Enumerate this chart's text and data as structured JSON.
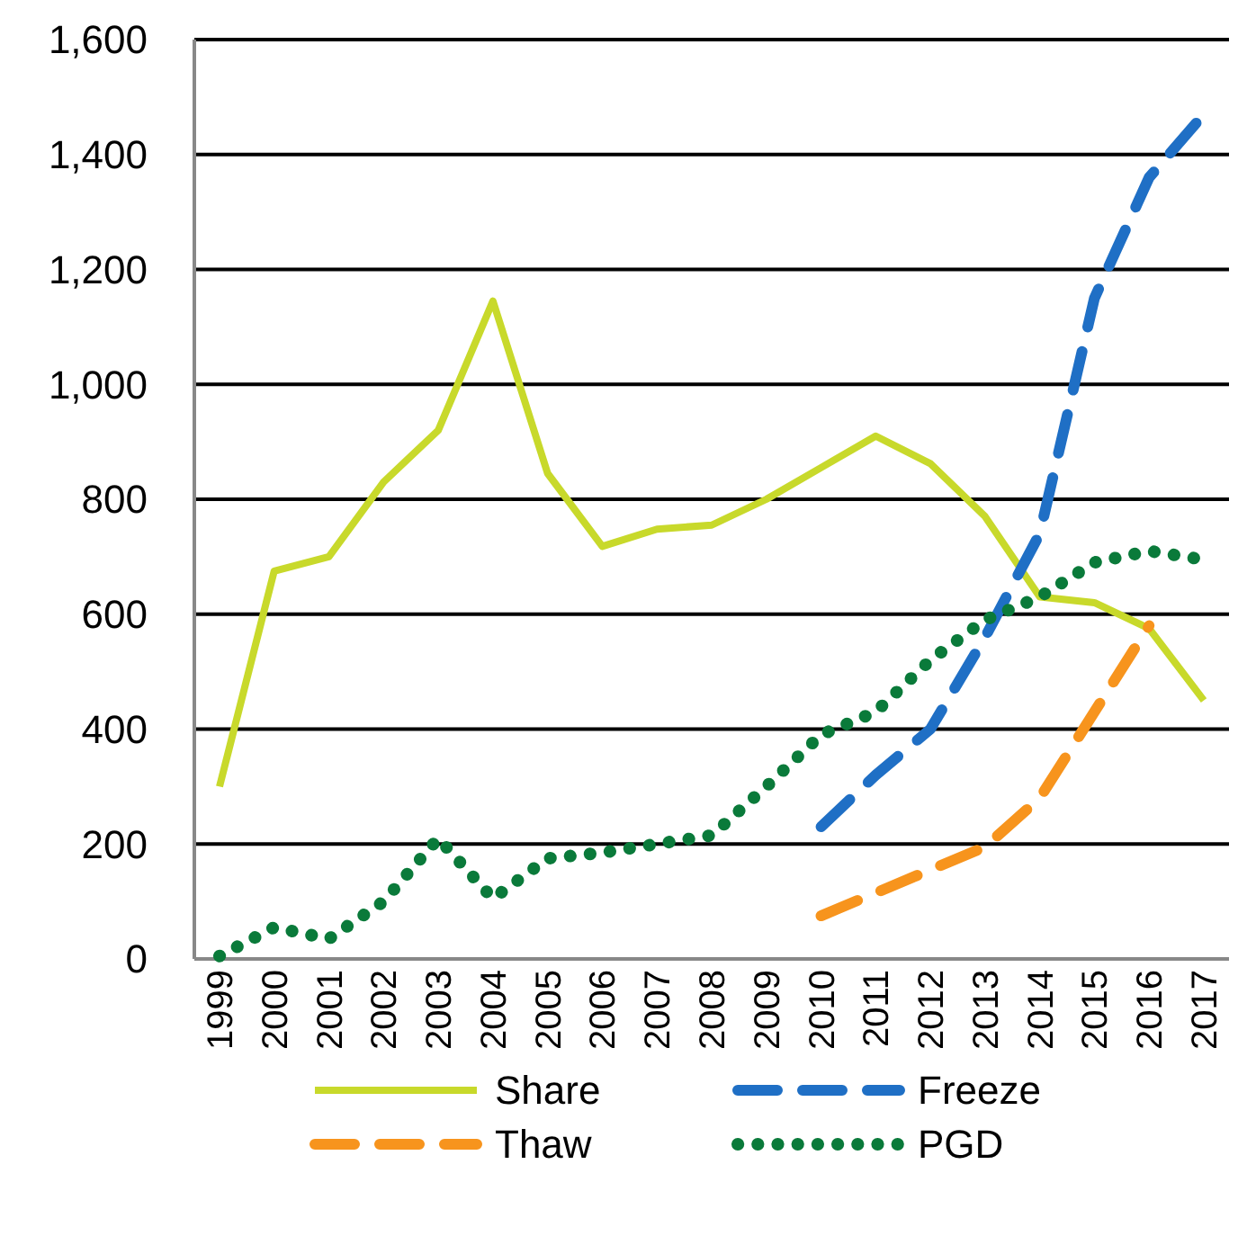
{
  "chart_data": {
    "type": "line",
    "categories": [
      "1999",
      "2000",
      "2001",
      "2002",
      "2003",
      "2004",
      "2005",
      "2006",
      "2007",
      "2008",
      "2009",
      "2010",
      "2011",
      "2012",
      "2013",
      "2014",
      "2015",
      "2016",
      "2017"
    ],
    "series": [
      {
        "name": "Share",
        "color": "#c8d92b",
        "line_style": "solid",
        "values": [
          300,
          675,
          700,
          830,
          920,
          1145,
          845,
          718,
          748,
          755,
          800,
          855,
          910,
          862,
          770,
          630,
          620,
          575,
          450
        ]
      },
      {
        "name": "Freeze",
        "color": "#1f6fc5",
        "line_style": "dashed",
        "values": [
          null,
          null,
          null,
          null,
          null,
          null,
          null,
          null,
          null,
          null,
          null,
          230,
          320,
          400,
          560,
          740,
          1150,
          1360,
          1470
        ]
      },
      {
        "name": "Thaw",
        "color": "#f7941d",
        "line_style": "dashed",
        "values": [
          null,
          null,
          null,
          null,
          null,
          null,
          null,
          null,
          null,
          null,
          null,
          75,
          115,
          155,
          195,
          280,
          430,
          580,
          null
        ]
      },
      {
        "name": "PGD",
        "color": "#0a7a3a",
        "line_style": "dotted",
        "values": [
          5,
          55,
          35,
          100,
          210,
          105,
          175,
          185,
          200,
          215,
          300,
          390,
          430,
          520,
          590,
          630,
          690,
          710,
          695
        ]
      }
    ],
    "ylim": [
      0,
      1600
    ],
    "yticks": [
      0,
      200,
      400,
      600,
      800,
      {
        "value": 1000,
        "label": "1,000"
      },
      {
        "value": 1200,
        "label": "1,200"
      },
      {
        "value": 1400,
        "label": "1,400"
      },
      {
        "value": 1600,
        "label": "1,600"
      }
    ],
    "grid": "y",
    "legend": "bottom"
  }
}
